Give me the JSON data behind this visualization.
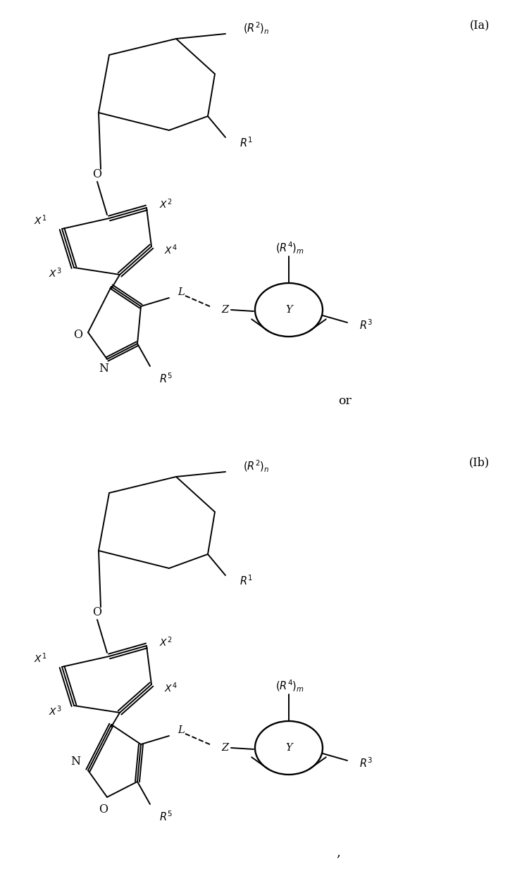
{
  "bg_color": "#ffffff",
  "line_color": "#000000",
  "lw": 1.4,
  "font_size": 10.5,
  "fig_width": 7.24,
  "fig_height": 12.44,
  "label_Ia": "(Ia)",
  "label_Ib": "(Ib)",
  "label_or": "or",
  "label_comma": ","
}
